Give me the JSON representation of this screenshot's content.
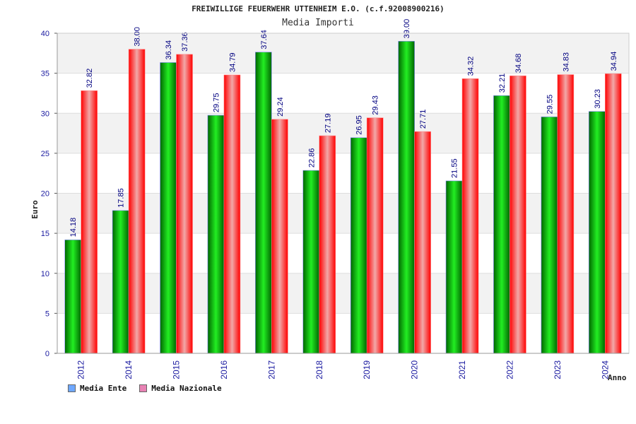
{
  "chart_data": {
    "type": "bar",
    "title": "FREIWILLIGE FEUERWEHR UTTENHEIM E.O. (c.f.92008900216)",
    "subtitle": "Media Importi",
    "xlabel": "Anno",
    "ylabel": "Euro",
    "categories": [
      "2012",
      "2014",
      "2015",
      "2016",
      "2017",
      "2018",
      "2019",
      "2020",
      "2021",
      "2022",
      "2023",
      "2024"
    ],
    "ylim": [
      0,
      40
    ],
    "yticks": [
      0,
      5,
      10,
      15,
      20,
      25,
      30,
      35,
      40
    ],
    "grid": true,
    "legend_position": "bottom-left",
    "series": [
      {
        "name": "Media Ente",
        "color": "#00cc00",
        "legend_color": "#6fa8ff",
        "values": [
          14.18,
          17.85,
          36.34,
          29.75,
          37.64,
          22.86,
          26.95,
          39.0,
          21.55,
          32.21,
          29.55,
          30.23
        ],
        "labels": [
          "14.18",
          "17.85",
          "36.34",
          "29.75",
          "37.64",
          "22.86",
          "26.95",
          "39.00",
          "21.55",
          "32.21",
          "29.55",
          "30.23"
        ]
      },
      {
        "name": "Media Nazionale",
        "color": "#ee1111",
        "legend_color": "#e882b4",
        "values": [
          32.82,
          38.0,
          37.36,
          34.79,
          29.24,
          27.19,
          29.43,
          27.71,
          34.32,
          34.68,
          34.83,
          34.94
        ],
        "labels": [
          "32.82",
          "38.00",
          "37.36",
          "34.79",
          "29.24",
          "27.19",
          "29.43",
          "27.71",
          "34.32",
          "34.68",
          "34.83",
          "34.94"
        ]
      }
    ]
  }
}
